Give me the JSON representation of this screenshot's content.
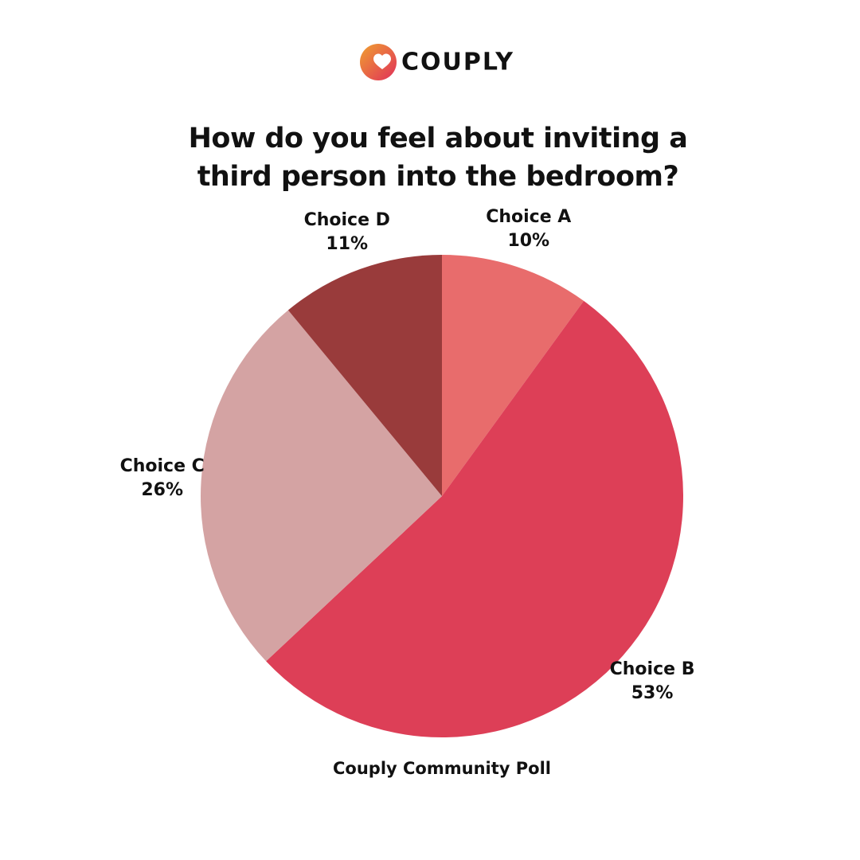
{
  "logo": "COUPLY",
  "chart_data": {
    "type": "pie",
    "title": "How do you feel about inviting a third person into the bedroom?",
    "categories": [
      "Choice A",
      "Choice B",
      "Choice C",
      "Choice D"
    ],
    "values": [
      10,
      53,
      26,
      11
    ],
    "value_labels": [
      "10%",
      "53%",
      "26%",
      "11%"
    ],
    "colors": [
      "#e86c6c",
      "#dd3f57",
      "#d4a3a3",
      "#993b3b"
    ],
    "source": "Couply Community Poll"
  }
}
